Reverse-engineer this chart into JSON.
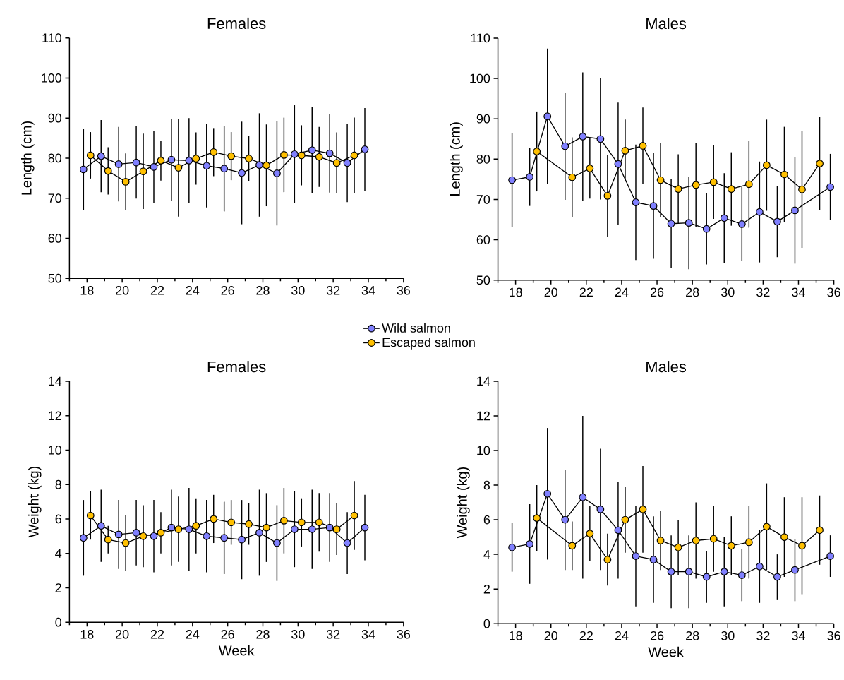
{
  "chart_data": [
    {
      "type": "line",
      "title": "Females",
      "ylabel": "Length (cm)",
      "xlim": [
        17,
        36
      ],
      "ylim": [
        50,
        110
      ],
      "xticks": [
        {
          "value": 17,
          "label": null
        },
        18,
        {
          "value": 19,
          "label": null
        },
        20,
        {
          "value": 21,
          "label": null
        },
        22,
        {
          "value": 23,
          "label": null
        },
        24,
        {
          "value": 25,
          "label": null
        },
        26,
        {
          "value": 27,
          "label": null
        },
        28,
        {
          "value": 29,
          "label": null
        },
        30,
        {
          "value": 31,
          "label": null
        },
        32,
        {
          "value": 33,
          "label": null
        },
        34,
        {
          "value": 35,
          "label": null
        },
        36
      ],
      "yticks": [
        50,
        60,
        70,
        80,
        90,
        100,
        110
      ],
      "marker": "circle",
      "line_style": "solid",
      "legend": "bottom",
      "series": [
        {
          "name": "Wild salmon",
          "color": "#8080ff",
          "x": [
            17.8,
            18.8,
            19.8,
            20.8,
            21.8,
            22.8,
            23.8,
            24.8,
            25.8,
            26.8,
            27.8,
            28.8,
            29.8,
            30.8,
            31.8,
            32.8,
            33.8
          ],
          "values": [
            77.2,
            80.5,
            78.5,
            78.9,
            77.8,
            79.6,
            79.4,
            78.1,
            77.4,
            76.3,
            78.3,
            76.2,
            81.0,
            82.0,
            81.2,
            78.8,
            82.2
          ],
          "errors": [
            10.1,
            9.0,
            9.3,
            9.0,
            9.0,
            10.2,
            10.6,
            10.4,
            10.7,
            12.8,
            12.9,
            13.0,
            12.2,
            10.8,
            9.8,
            9.8,
            10.3
          ]
        },
        {
          "name": "Escaped salmon",
          "color": "#ffc000",
          "x": [
            18.2,
            19.2,
            20.2,
            21.2,
            22.2,
            23.2,
            24.2,
            25.2,
            26.2,
            27.2,
            28.2,
            29.2,
            30.2,
            31.2,
            32.2,
            33.2
          ],
          "values": [
            80.7,
            76.8,
            74.1,
            76.7,
            79.4,
            77.6,
            79.9,
            81.5,
            80.5,
            79.9,
            78.2,
            80.8,
            80.7,
            80.3,
            78.8,
            80.7
          ],
          "errors": [
            5.8,
            5.9,
            7.1,
            9.4,
            5.0,
            12.2,
            6.5,
            6.0,
            6.0,
            5.6,
            10.2,
            9.3,
            7.5,
            7.5,
            7.6,
            9.4
          ]
        }
      ]
    },
    {
      "type": "line",
      "title": "Males",
      "ylabel": "Length (cm)",
      "xlim": [
        17,
        36
      ],
      "ylim": [
        50,
        110
      ],
      "xticks": [
        {
          "value": 17,
          "label": null
        },
        18,
        {
          "value": 19,
          "label": null
        },
        20,
        {
          "value": 21,
          "label": null
        },
        22,
        {
          "value": 23,
          "label": null
        },
        24,
        {
          "value": 25,
          "label": null
        },
        26,
        {
          "value": 27,
          "label": null
        },
        28,
        {
          "value": 29,
          "label": null
        },
        30,
        {
          "value": 31,
          "label": null
        },
        32,
        {
          "value": 33,
          "label": null
        },
        34,
        {
          "value": 35,
          "label": null
        },
        36
      ],
      "yticks": [
        50,
        60,
        70,
        80,
        90,
        100,
        110
      ],
      "marker": "circle",
      "line_style": "solid",
      "series": [
        {
          "color": "#8080ff",
          "x": [
            17.8,
            18.8,
            19.8,
            20.8,
            21.8,
            22.8,
            23.8,
            24.8,
            25.8,
            26.8,
            27.8,
            28.8,
            29.8,
            30.8,
            31.8,
            32.8,
            33.8,
            35.8
          ],
          "values": [
            74.8,
            75.6,
            90.6,
            83.2,
            85.6,
            85.0,
            78.8,
            69.3,
            68.4,
            64.0,
            64.2,
            62.7,
            65.4,
            63.9,
            66.9,
            64.5,
            67.3,
            73.1
          ],
          "errors": [
            11.6,
            7.2,
            16.8,
            13.3,
            15.9,
            15.0,
            15.2,
            14.3,
            13.1,
            11.0,
            11.5,
            8.8,
            11.1,
            9.2,
            12.5,
            8.8,
            13.2,
            8.2
          ]
        },
        {
          "color": "#ffc000",
          "x": [
            19.2,
            21.2,
            22.2,
            23.2,
            24.2,
            25.2,
            26.2,
            27.2,
            28.2,
            29.2,
            30.2,
            31.2,
            32.2,
            33.2,
            34.2,
            35.2
          ],
          "values": [
            81.9,
            75.5,
            77.7,
            70.9,
            82.1,
            83.3,
            74.8,
            72.6,
            73.6,
            74.3,
            72.6,
            73.8,
            78.5,
            76.2,
            72.5,
            78.9
          ],
          "errors": [
            9.9,
            9.9,
            7.5,
            10.2,
            7.7,
            9.5,
            9.1,
            8.6,
            10.4,
            9.1,
            9.1,
            10.8,
            11.3,
            11.8,
            14.5,
            11.5
          ]
        }
      ]
    },
    {
      "type": "line",
      "title": "Females",
      "xlabel": "Week",
      "ylabel": "Weight (kg)",
      "xlim": [
        17,
        36
      ],
      "ylim": [
        0,
        14
      ],
      "xticks": [
        {
          "value": 17,
          "label": null
        },
        18,
        {
          "value": 19,
          "label": null
        },
        20,
        {
          "value": 21,
          "label": null
        },
        22,
        {
          "value": 23,
          "label": null
        },
        24,
        {
          "value": 25,
          "label": null
        },
        26,
        {
          "value": 27,
          "label": null
        },
        28,
        {
          "value": 29,
          "label": null
        },
        30,
        {
          "value": 31,
          "label": null
        },
        32,
        {
          "value": 33,
          "label": null
        },
        34,
        {
          "value": 35,
          "label": null
        },
        36
      ],
      "yticks": [
        0,
        2,
        4,
        6,
        8,
        10,
        12,
        14
      ],
      "marker": "circle",
      "line_style": "solid",
      "series": [
        {
          "color": "#8080ff",
          "x": [
            17.8,
            18.8,
            19.8,
            20.8,
            21.8,
            22.8,
            23.8,
            24.8,
            25.8,
            26.8,
            27.8,
            28.8,
            29.8,
            30.8,
            31.8,
            32.8,
            33.8
          ],
          "values": [
            4.9,
            5.6,
            5.1,
            5.2,
            5.0,
            5.5,
            5.4,
            5.0,
            4.9,
            4.8,
            5.2,
            4.6,
            5.4,
            5.4,
            5.5,
            4.6,
            5.5
          ],
          "errors": [
            2.2,
            2.1,
            2.0,
            1.9,
            2.1,
            2.2,
            2.4,
            2.1,
            2.1,
            2.3,
            2.5,
            2.2,
            2.2,
            2.3,
            2.0,
            1.8,
            1.9
          ]
        },
        {
          "color": "#ffc000",
          "x": [
            18.2,
            19.2,
            20.2,
            21.2,
            22.2,
            23.2,
            24.2,
            25.2,
            26.2,
            27.2,
            28.2,
            29.2,
            30.2,
            31.2,
            32.2,
            33.2
          ],
          "values": [
            6.2,
            4.8,
            4.6,
            5.0,
            5.2,
            5.4,
            5.6,
            6.0,
            5.8,
            5.7,
            5.5,
            5.9,
            5.8,
            5.8,
            5.4,
            6.2
          ],
          "errors": [
            1.4,
            0.8,
            1.6,
            1.8,
            1.2,
            1.9,
            1.6,
            1.4,
            1.3,
            1.2,
            2.0,
            1.9,
            1.4,
            1.7,
            1.5,
            2.0
          ]
        }
      ]
    },
    {
      "type": "line",
      "title": "Males",
      "xlabel": "Week",
      "ylabel": "Weight (kg)",
      "xlim": [
        17,
        36
      ],
      "ylim": [
        0,
        14
      ],
      "xticks": [
        {
          "value": 17,
          "label": null
        },
        18,
        {
          "value": 19,
          "label": null
        },
        20,
        {
          "value": 21,
          "label": null
        },
        22,
        {
          "value": 23,
          "label": null
        },
        24,
        {
          "value": 25,
          "label": null
        },
        26,
        {
          "value": 27,
          "label": null
        },
        28,
        {
          "value": 29,
          "label": null
        },
        30,
        {
          "value": 31,
          "label": null
        },
        32,
        {
          "value": 33,
          "label": null
        },
        34,
        {
          "value": 35,
          "label": null
        },
        36
      ],
      "yticks": [
        0,
        2,
        4,
        6,
        8,
        10,
        12,
        14
      ],
      "marker": "circle",
      "line_style": "solid",
      "series": [
        {
          "color": "#8080ff",
          "x": [
            17.8,
            18.8,
            19.8,
            20.8,
            21.8,
            22.8,
            23.8,
            24.8,
            25.8,
            26.8,
            27.8,
            28.8,
            29.8,
            30.8,
            31.8,
            32.8,
            33.8,
            35.8
          ],
          "values": [
            4.4,
            4.6,
            7.5,
            6.0,
            7.3,
            6.6,
            5.4,
            3.9,
            3.7,
            3.0,
            3.0,
            2.7,
            3.0,
            2.8,
            3.3,
            2.7,
            3.1,
            3.9
          ],
          "errors": [
            1.4,
            2.3,
            3.8,
            2.9,
            4.7,
            3.5,
            2.8,
            2.9,
            2.5,
            2.1,
            2.1,
            1.5,
            2.0,
            1.5,
            2.1,
            1.3,
            1.8,
            1.2
          ]
        },
        {
          "color": "#ffc000",
          "x": [
            19.2,
            21.2,
            22.2,
            23.2,
            24.2,
            25.2,
            26.2,
            27.2,
            28.2,
            29.2,
            30.2,
            31.2,
            32.2,
            33.2,
            34.2,
            35.2
          ],
          "values": [
            6.1,
            4.5,
            5.2,
            3.7,
            6.0,
            6.6,
            4.8,
            4.4,
            4.8,
            4.9,
            4.5,
            4.7,
            5.6,
            5.0,
            4.5,
            5.4
          ],
          "errors": [
            1.9,
            1.4,
            1.6,
            1.5,
            1.9,
            2.5,
            1.7,
            1.6,
            2.2,
            1.9,
            1.7,
            2.1,
            2.5,
            2.3,
            2.8,
            2.0
          ]
        }
      ]
    }
  ]
}
